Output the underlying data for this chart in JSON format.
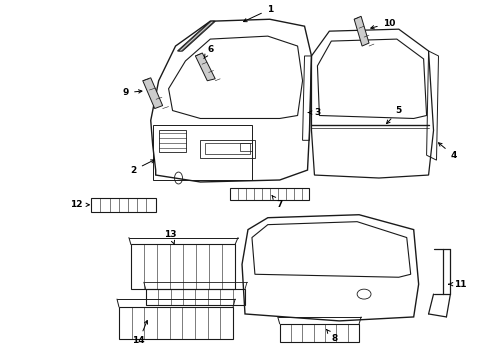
{
  "bg_color": "#ffffff",
  "line_color": "#1a1a1a",
  "label_color": "#000000",
  "label_fontsize": 6.5,
  "fig_width": 4.9,
  "fig_height": 3.6,
  "dpi": 100
}
